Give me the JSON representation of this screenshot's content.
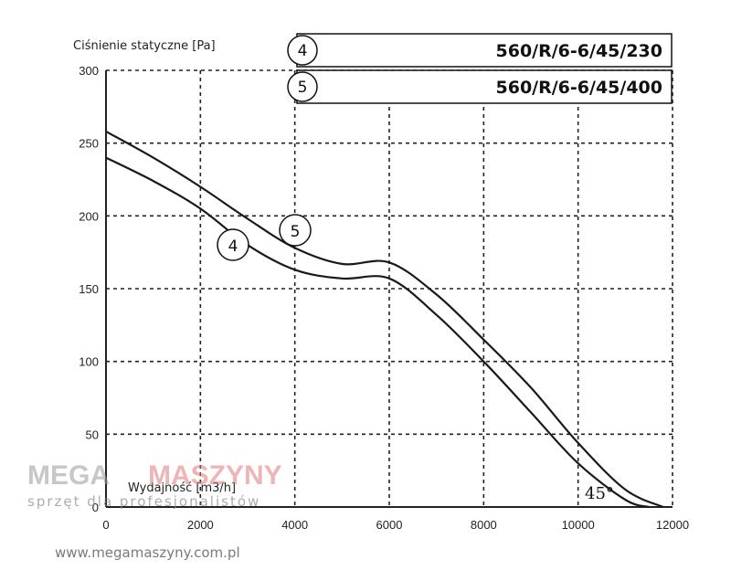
{
  "chart_data": {
    "type": "line",
    "ylabel": "Ciśnienie statyczne [Pa]",
    "xlabel": "Wydajność [m3/h]",
    "xlim": [
      0,
      12000
    ],
    "ylim": [
      0,
      300
    ],
    "xticks": [
      0,
      2000,
      4000,
      6000,
      8000,
      10000,
      12000
    ],
    "yticks": [
      0,
      50,
      100,
      150,
      200,
      250,
      300
    ],
    "grid": true,
    "legend": [
      {
        "id": "4",
        "label": "560/R/6-6/45/230"
      },
      {
        "id": "5",
        "label": "560/R/6-6/45/400"
      }
    ],
    "series": [
      {
        "name": "4",
        "x": [
          0,
          1000,
          2000,
          3000,
          4000,
          5000,
          6000,
          7000,
          8000,
          9000,
          10000,
          11000,
          11500
        ],
        "y": [
          240,
          224,
          205,
          180,
          163,
          157,
          157,
          132,
          100,
          65,
          30,
          5,
          0
        ]
      },
      {
        "name": "5",
        "x": [
          0,
          1000,
          2000,
          3000,
          4000,
          5000,
          6000,
          7000,
          8000,
          9000,
          10000,
          11000,
          11800
        ],
        "y": [
          258,
          240,
          220,
          198,
          178,
          167,
          168,
          146,
          115,
          82,
          44,
          12,
          0
        ]
      }
    ],
    "annotations": [
      "4",
      "5",
      "45°"
    ]
  },
  "watermark": {
    "brand_left": "MEGA",
    "brand_right": "MASZYNY",
    "tagline": "sprzęt dla profesjonalistów",
    "url": "www.megamaszyny.com.pl"
  },
  "colors": {
    "line": "#1a1a1a",
    "grid": "#222222",
    "background": "#ffffff"
  }
}
